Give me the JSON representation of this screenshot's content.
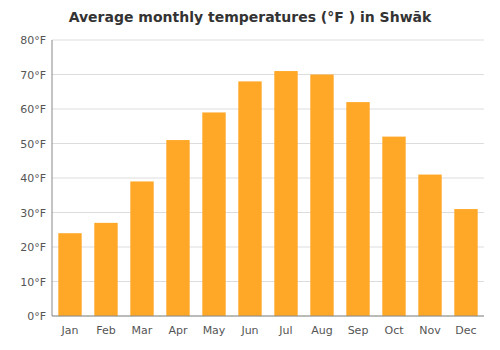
{
  "chart_data": {
    "type": "bar",
    "title": "Average monthly temperatures (°F ) in Shwāk",
    "categories": [
      "Jan",
      "Feb",
      "Mar",
      "Apr",
      "May",
      "Jun",
      "Jul",
      "Aug",
      "Sep",
      "Oct",
      "Nov",
      "Dec"
    ],
    "values": [
      24,
      27,
      39,
      51,
      59,
      68,
      71,
      70,
      62,
      52,
      41,
      31
    ],
    "color": "#FFA828",
    "ylim": [
      0,
      80
    ],
    "yticks": [
      {
        "value": 0,
        "label": "0°F"
      },
      {
        "value": 10,
        "label": "10°F"
      },
      {
        "value": 20,
        "label": "20°F"
      },
      {
        "value": 30,
        "label": "30°F"
      },
      {
        "value": 40,
        "label": "40°F"
      },
      {
        "value": 50,
        "label": "50°F"
      },
      {
        "value": 60,
        "label": "60°F"
      },
      {
        "value": 70,
        "label": "70°F"
      },
      {
        "value": 80,
        "label": "80°F"
      }
    ],
    "grid": true
  }
}
